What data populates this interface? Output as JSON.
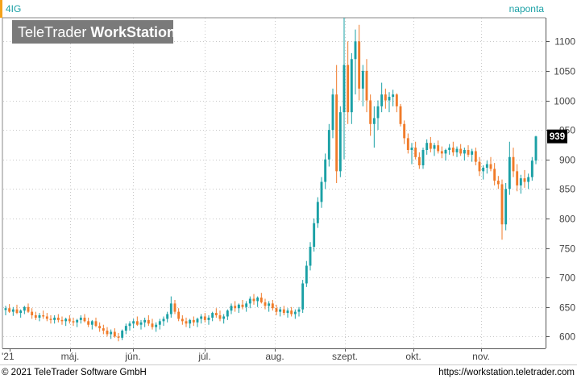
{
  "header": {
    "ticker": "4IG",
    "interval": "naponta"
  },
  "watermark": {
    "brand_regular": "TeleTrader ",
    "brand_bold": "WorkStation"
  },
  "footer": {
    "copyright": "© 2021 TeleTrader Software GmbH",
    "url": "https://workstation.teletrader.com"
  },
  "chart_data": {
    "type": "candlestick",
    "series_name": "4IG",
    "ylim": [
      580,
      1140
    ],
    "y_ticks": [
      600,
      650,
      700,
      750,
      800,
      850,
      900,
      950,
      1000,
      1050,
      1100
    ],
    "y_tick_labels": [
      "600",
      "650",
      "700",
      "750",
      "800",
      "850",
      "900",
      "950",
      "1000",
      "1050",
      "1100"
    ],
    "x_tick_labels": [
      "'21",
      "máj.",
      "jún.",
      "júl.",
      "aug.",
      "szept.",
      "okt.",
      "nov."
    ],
    "grid": true,
    "last_value": "939",
    "colors": {
      "up": "#1aa0a5",
      "down": "#f07b2a",
      "accent": "#f4a21a",
      "grid": "#c8c8c8"
    },
    "candles": [
      [
        645,
        652,
        636,
        648
      ],
      [
        648,
        655,
        640,
        642
      ],
      [
        642,
        650,
        635,
        646
      ],
      [
        646,
        654,
        638,
        640
      ],
      [
        640,
        646,
        632,
        644
      ],
      [
        644,
        652,
        638,
        650
      ],
      [
        650,
        656,
        640,
        642
      ],
      [
        642,
        648,
        630,
        636
      ],
      [
        636,
        642,
        628,
        632
      ],
      [
        632,
        640,
        626,
        636
      ],
      [
        636,
        644,
        630,
        634
      ],
      [
        634,
        640,
        626,
        630
      ],
      [
        630,
        636,
        622,
        628
      ],
      [
        628,
        636,
        622,
        632
      ],
      [
        632,
        638,
        624,
        628
      ],
      [
        628,
        634,
        620,
        626
      ],
      [
        626,
        632,
        618,
        630
      ],
      [
        630,
        636,
        622,
        626
      ],
      [
        626,
        632,
        618,
        624
      ],
      [
        624,
        630,
        616,
        628
      ],
      [
        628,
        636,
        622,
        632
      ],
      [
        632,
        638,
        624,
        626
      ],
      [
        626,
        632,
        616,
        620
      ],
      [
        620,
        628,
        612,
        626
      ],
      [
        626,
        632,
        616,
        618
      ],
      [
        618,
        624,
        608,
        614
      ],
      [
        614,
        620,
        604,
        610
      ],
      [
        610,
        616,
        600,
        604
      ],
      [
        604,
        612,
        596,
        608
      ],
      [
        608,
        614,
        598,
        600
      ],
      [
        600,
        606,
        592,
        598
      ],
      [
        598,
        612,
        594,
        610
      ],
      [
        610,
        622,
        604,
        618
      ],
      [
        618,
        626,
        610,
        622
      ],
      [
        622,
        630,
        614,
        626
      ],
      [
        626,
        634,
        618,
        620
      ],
      [
        620,
        628,
        612,
        624
      ],
      [
        624,
        632,
        616,
        628
      ],
      [
        628,
        636,
        618,
        622
      ],
      [
        622,
        630,
        612,
        616
      ],
      [
        616,
        624,
        608,
        620
      ],
      [
        620,
        630,
        612,
        626
      ],
      [
        626,
        634,
        618,
        630
      ],
      [
        630,
        642,
        624,
        638
      ],
      [
        638,
        668,
        632,
        656
      ],
      [
        656,
        662,
        638,
        642
      ],
      [
        642,
        648,
        626,
        630
      ],
      [
        630,
        636,
        620,
        626
      ],
      [
        626,
        632,
        616,
        622
      ],
      [
        622,
        630,
        614,
        628
      ],
      [
        628,
        634,
        618,
        624
      ],
      [
        624,
        632,
        616,
        630
      ],
      [
        630,
        638,
        622,
        634
      ],
      [
        634,
        640,
        624,
        628
      ],
      [
        628,
        636,
        620,
        632
      ],
      [
        632,
        642,
        626,
        640
      ],
      [
        640,
        648,
        632,
        636
      ],
      [
        636,
        644,
        626,
        630
      ],
      [
        630,
        638,
        622,
        634
      ],
      [
        634,
        646,
        628,
        644
      ],
      [
        644,
        656,
        638,
        652
      ],
      [
        652,
        660,
        642,
        648
      ],
      [
        648,
        656,
        640,
        654
      ],
      [
        654,
        662,
        646,
        650
      ],
      [
        650,
        660,
        642,
        656
      ],
      [
        656,
        668,
        648,
        664
      ],
      [
        664,
        672,
        654,
        660
      ],
      [
        660,
        668,
        650,
        666
      ],
      [
        666,
        674,
        656,
        658
      ],
      [
        658,
        664,
        646,
        652
      ],
      [
        652,
        660,
        642,
        656
      ],
      [
        656,
        662,
        644,
        648
      ],
      [
        648,
        654,
        636,
        642
      ],
      [
        642,
        650,
        634,
        646
      ],
      [
        646,
        652,
        636,
        640
      ],
      [
        640,
        648,
        632,
        644
      ],
      [
        644,
        650,
        634,
        638
      ],
      [
        638,
        646,
        630,
        642
      ],
      [
        642,
        650,
        634,
        646
      ],
      [
        646,
        696,
        640,
        690
      ],
      [
        690,
        728,
        684,
        720
      ],
      [
        720,
        760,
        712,
        752
      ],
      [
        752,
        800,
        744,
        792
      ],
      [
        792,
        836,
        784,
        828
      ],
      [
        828,
        870,
        818,
        862
      ],
      [
        862,
        910,
        850,
        900
      ],
      [
        900,
        960,
        888,
        950
      ],
      [
        950,
        1020,
        936,
        1010
      ],
      [
        1010,
        1060,
        860,
        880
      ],
      [
        880,
        990,
        870,
        980
      ],
      [
        980,
        1140,
        900,
        1060
      ],
      [
        1060,
        1100,
        960,
        980
      ],
      [
        980,
        1080,
        960,
        1070
      ],
      [
        1070,
        1120,
        1010,
        1100
      ],
      [
        1100,
        1128,
        1000,
        1020
      ],
      [
        1020,
        1060,
        990,
        1050
      ],
      [
        1050,
        1070,
        980,
        1000
      ],
      [
        1000,
        1010,
        940,
        960
      ],
      [
        960,
        990,
        920,
        970
      ],
      [
        970,
        1000,
        950,
        990
      ],
      [
        990,
        1030,
        980,
        1010
      ],
      [
        1010,
        1020,
        986,
        1000
      ],
      [
        1000,
        1014,
        980,
        1006
      ],
      [
        1006,
        1018,
        990,
        1010
      ],
      [
        1010,
        1012,
        980,
        990
      ],
      [
        990,
        994,
        956,
        960
      ],
      [
        960,
        966,
        926,
        936
      ],
      [
        936,
        944,
        910,
        916
      ],
      [
        916,
        928,
        892,
        920
      ],
      [
        920,
        930,
        900,
        904
      ],
      [
        904,
        912,
        884,
        890
      ],
      [
        890,
        920,
        884,
        916
      ],
      [
        916,
        934,
        908,
        928
      ],
      [
        928,
        938,
        912,
        918
      ],
      [
        918,
        928,
        906,
        924
      ],
      [
        924,
        932,
        910,
        914
      ],
      [
        914,
        922,
        902,
        910
      ],
      [
        910,
        918,
        898,
        916
      ],
      [
        916,
        926,
        908,
        920
      ],
      [
        920,
        930,
        906,
        912
      ],
      [
        912,
        922,
        904,
        918
      ],
      [
        918,
        926,
        906,
        910
      ],
      [
        910,
        920,
        898,
        916
      ],
      [
        916,
        924,
        904,
        908
      ],
      [
        908,
        918,
        896,
        914
      ],
      [
        914,
        920,
        890,
        896
      ],
      [
        896,
        904,
        872,
        880
      ],
      [
        880,
        890,
        866,
        886
      ],
      [
        886,
        898,
        876,
        892
      ],
      [
        892,
        904,
        880,
        884
      ],
      [
        884,
        894,
        856,
        864
      ],
      [
        864,
        872,
        850,
        858
      ],
      [
        858,
        866,
        764,
        790
      ],
      [
        790,
        860,
        780,
        850
      ],
      [
        850,
        930,
        840,
        904
      ],
      [
        904,
        920,
        870,
        880
      ],
      [
        880,
        892,
        846,
        856
      ],
      [
        856,
        874,
        842,
        868
      ],
      [
        868,
        882,
        852,
        862
      ],
      [
        862,
        876,
        850,
        870
      ],
      [
        870,
        904,
        864,
        898
      ],
      [
        898,
        940,
        892,
        939
      ]
    ]
  }
}
